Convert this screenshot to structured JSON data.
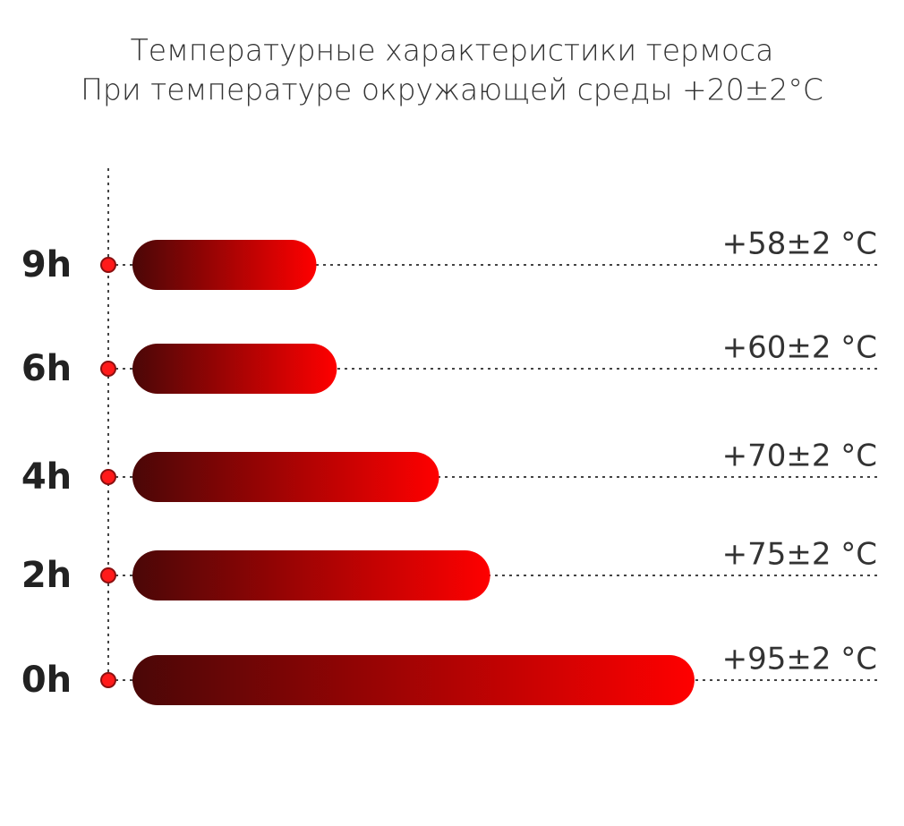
{
  "chart_data": {
    "type": "bar",
    "orientation": "horizontal",
    "title": "Температурные характеристики термоса",
    "subtitle": "При температуре окружающей среды +20±2°C",
    "categories": [
      "9h",
      "6h",
      "4h",
      "2h",
      "0h"
    ],
    "values": [
      58,
      60,
      70,
      75,
      95
    ],
    "value_labels": [
      "+58±2 °C",
      "+60±2 °C",
      "+70±2 °C",
      "+75±2 °C",
      "+95±2 °C"
    ],
    "color": "#ff0000",
    "xlim": [
      40,
      100
    ]
  }
}
